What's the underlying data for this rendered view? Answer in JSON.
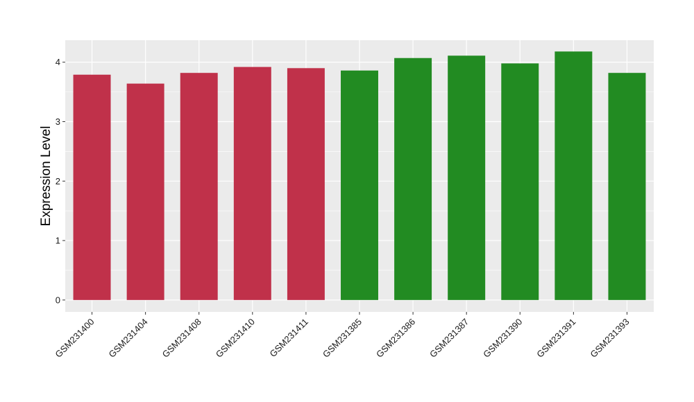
{
  "chart_data": {
    "type": "bar",
    "title": "",
    "xlabel": "",
    "ylabel": "Expression Level",
    "ylim": [
      -0.2,
      4.37
    ],
    "yticks": [
      0,
      1,
      2,
      3,
      4
    ],
    "grid": true,
    "legend": "none",
    "categories": [
      "GSM231400",
      "GSM231404",
      "GSM231408",
      "GSM231410",
      "GSM231411",
      "GSM231385",
      "GSM231386",
      "GSM231387",
      "GSM231390",
      "GSM231391",
      "GSM231393"
    ],
    "values": [
      3.79,
      3.64,
      3.82,
      3.92,
      3.9,
      3.86,
      4.07,
      4.11,
      3.98,
      4.18,
      3.82
    ],
    "bar_colors": [
      "#C0314A",
      "#C0314A",
      "#C0314A",
      "#C0314A",
      "#C0314A",
      "#228B22",
      "#228B22",
      "#228B22",
      "#228B22",
      "#228B22",
      "#228B22"
    ],
    "panel_background": "#EBEBEB",
    "grid_color": "#FFFFFF"
  }
}
